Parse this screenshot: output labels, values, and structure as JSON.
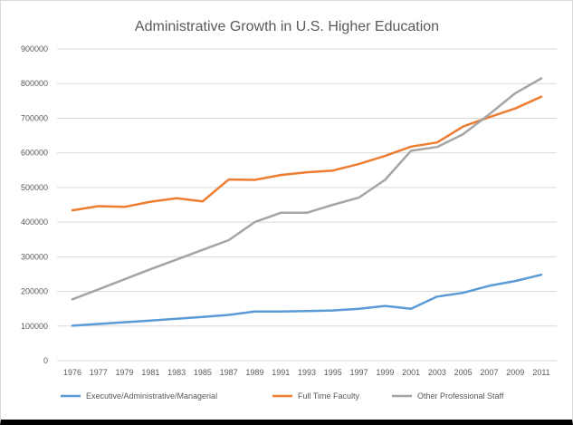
{
  "chart_data": {
    "type": "line",
    "title": "Administrative Growth in U.S. Higher Education",
    "xlabel": "",
    "ylabel": "",
    "categories": [
      "1976",
      "1977",
      "1979",
      "1981",
      "1983",
      "1985",
      "1987",
      "1989",
      "1991",
      "1993",
      "1995",
      "1997",
      "1999",
      "2001",
      "2003",
      "2005",
      "2007",
      "2009",
      "2011"
    ],
    "ylim": [
      0,
      900000
    ],
    "yticks": [
      "0",
      "100000",
      "200000",
      "300000",
      "400000",
      "500000",
      "600000",
      "700000",
      "800000",
      "900000"
    ],
    "grid": true,
    "legend_position": "bottom",
    "series": [
      {
        "name": "Executive/Administrative/Managerial",
        "color": "#5b9bd5",
        "values": [
          101000,
          106000,
          111000,
          116000,
          121000,
          126000,
          132000,
          142000,
          142000,
          143000,
          145000,
          150000,
          158000,
          150000,
          185000,
          196000,
          216000,
          230000,
          248000
        ]
      },
      {
        "name": "Full Time Faculty",
        "color": "#ed7d31",
        "values": [
          434000,
          446000,
          444000,
          459000,
          469000,
          460000,
          523000,
          522000,
          536000,
          544000,
          549000,
          568000,
          591000,
          618000,
          630000,
          676000,
          703000,
          728000,
          762000
        ]
      },
      {
        "name": "Other Professional Staff",
        "color": "#a5a5a5",
        "values": [
          177000,
          206000,
          235000,
          264000,
          292000,
          320000,
          348000,
          400000,
          427000,
          427000,
          450000,
          471000,
          522000,
          606000,
          617000,
          654000,
          711000,
          772000,
          815000
        ]
      }
    ]
  }
}
